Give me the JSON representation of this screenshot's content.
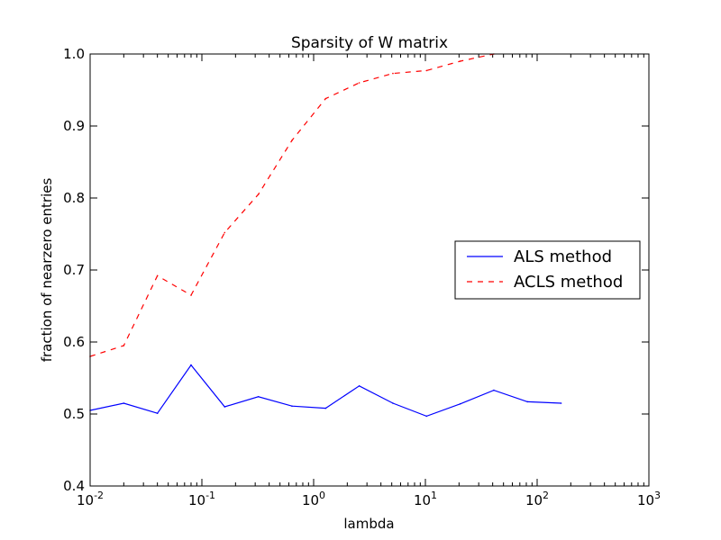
{
  "chart_data": {
    "type": "line",
    "title": "Sparsity of W matrix",
    "xlabel": "lambda",
    "ylabel": "fraction of nearzero entries",
    "xscale": "log",
    "xlim": [
      0.01,
      1000
    ],
    "ylim": [
      0.4,
      1.0
    ],
    "x_ticks": [
      {
        "value": 0.01,
        "base": "10",
        "exp": "-2"
      },
      {
        "value": 0.1,
        "base": "10",
        "exp": "-1"
      },
      {
        "value": 1,
        "base": "10",
        "exp": "0"
      },
      {
        "value": 10,
        "base": "10",
        "exp": "1"
      },
      {
        "value": 100,
        "base": "10",
        "exp": "2"
      },
      {
        "value": 1000,
        "base": "10",
        "exp": "3"
      }
    ],
    "y_ticks": [
      {
        "value": 0.4,
        "label": "0.4"
      },
      {
        "value": 0.5,
        "label": "0.5"
      },
      {
        "value": 0.6,
        "label": "0.6"
      },
      {
        "value": 0.7,
        "label": "0.7"
      },
      {
        "value": 0.8,
        "label": "0.8"
      },
      {
        "value": 0.9,
        "label": "0.9"
      },
      {
        "value": 1.0,
        "label": "1.0"
      }
    ],
    "grid": false,
    "legend_position": "center-right",
    "series": [
      {
        "name": "ALS method",
        "color": "#0000ff",
        "style": "solid",
        "x": [
          0.01,
          0.02,
          0.04,
          0.08,
          0.16,
          0.32,
          0.64,
          1.28,
          2.56,
          5.12,
          10.24,
          20.48,
          40.96,
          81.92,
          163.84
        ],
        "y": [
          0.505,
          0.515,
          0.501,
          0.568,
          0.51,
          0.524,
          0.511,
          0.508,
          0.539,
          0.515,
          0.497,
          0.514,
          0.533,
          0.517,
          0.515
        ]
      },
      {
        "name": "ACLS method",
        "color": "#ff0000",
        "style": "dashed",
        "x": [
          0.01,
          0.02,
          0.04,
          0.08,
          0.16,
          0.32,
          0.64,
          1.28,
          2.56,
          5.12,
          10.24,
          20.48,
          40.96
        ],
        "y": [
          0.58,
          0.595,
          0.692,
          0.665,
          0.752,
          0.805,
          0.88,
          0.938,
          0.96,
          0.973,
          0.977,
          0.99,
          1.0
        ]
      }
    ]
  }
}
